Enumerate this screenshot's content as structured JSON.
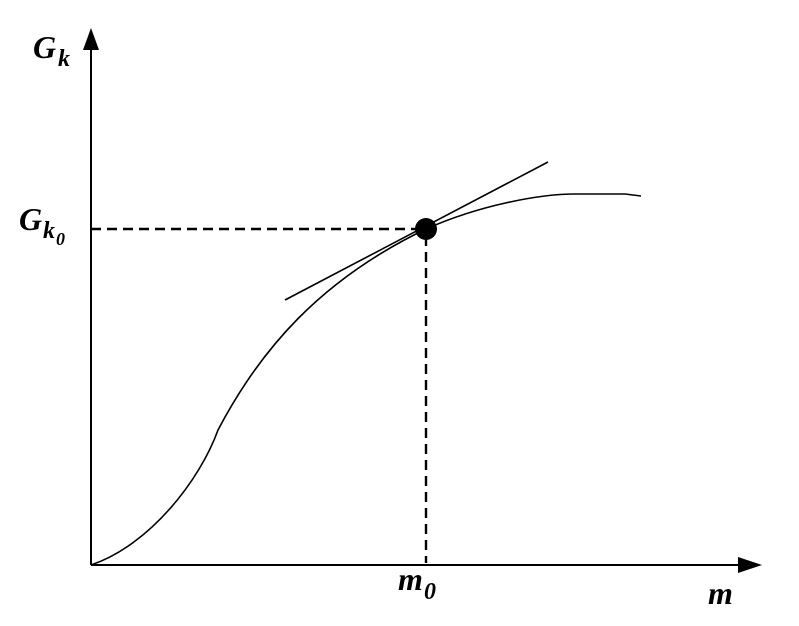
{
  "axes": {
    "y_label": {
      "main": "G",
      "sub": "k"
    },
    "x_label": "m"
  },
  "point_label_y": {
    "main": "G",
    "sub": "k",
    "subsub": "0"
  },
  "point_label_x": {
    "main": "m",
    "sub": "0"
  },
  "colors": {
    "stroke": "#000000",
    "background": "#ffffff"
  }
}
